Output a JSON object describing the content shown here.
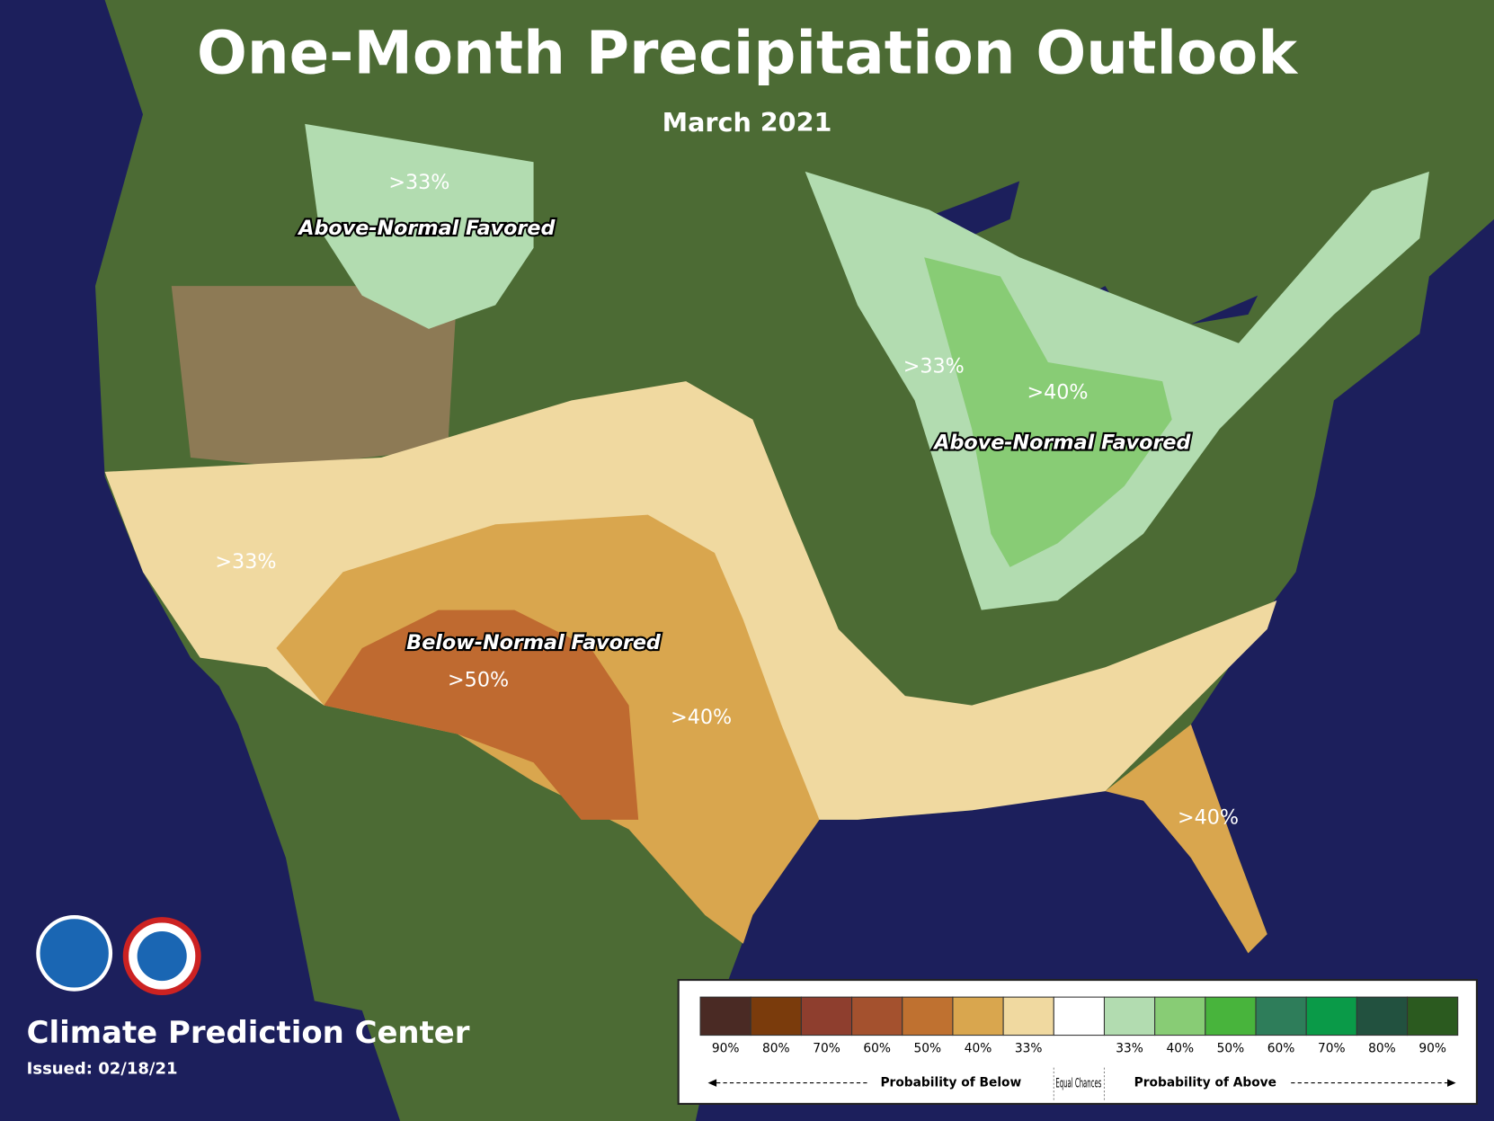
{
  "header": {
    "title": "One-Month Precipitation Outlook",
    "subtitle": "March 2021"
  },
  "map_labels": [
    ">33%",
    "Above-Normal Favored",
    ">33%",
    ">40%",
    "Above-Normal Favored",
    ">33%",
    "Below-Normal Favored",
    ">50%",
    ">40%",
    ">40%"
  ],
  "legend": {
    "swatches": [
      "#4a2a24",
      "#7a3b0c",
      "#8e3e2e",
      "#a4512e",
      "#bf7130",
      "#d9a64e",
      "#f0d9a0",
      "#ffffff",
      "#b2dcb0",
      "#88cc75",
      "#48b43c",
      "#2e7d5a",
      "#0a9a48",
      "#22513f",
      "#2b5a1f"
    ],
    "tick_labels": [
      "90%",
      "80%",
      "70%",
      "60%",
      "50%",
      "40%",
      "33%",
      "33%",
      "40%",
      "50%",
      "60%",
      "70%",
      "80%",
      "90%"
    ],
    "below_label": "Probability of Below",
    "equal_label": "Equal Chances",
    "above_label": "Probability of Above"
  },
  "footer": {
    "center": "Climate Prediction Center",
    "issued": "Issued: 02/18/21"
  }
}
